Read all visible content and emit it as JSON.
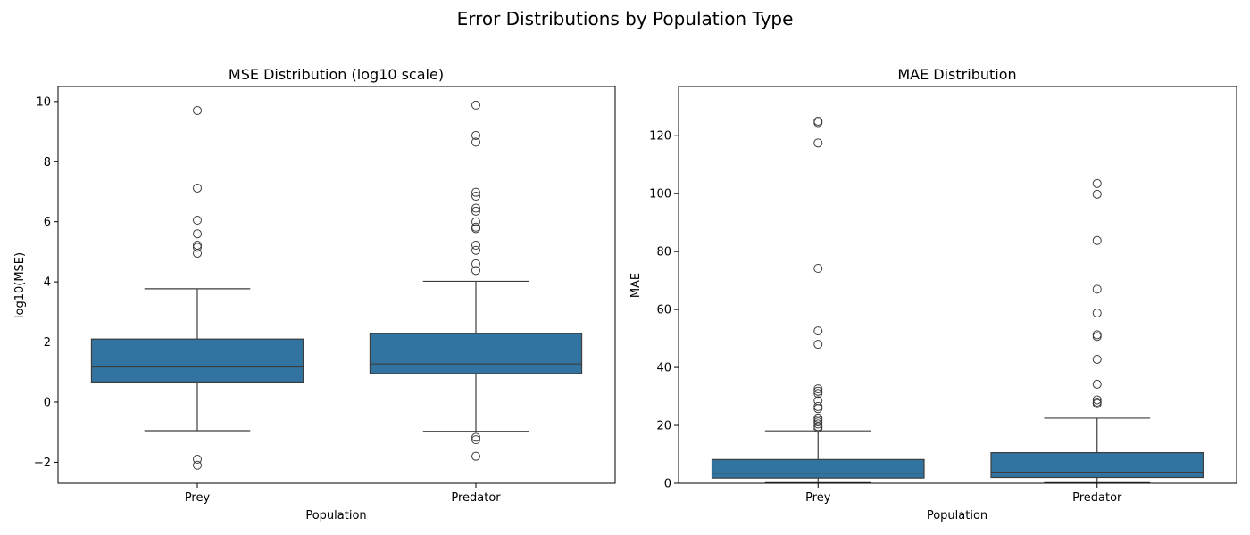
{
  "figure": {
    "suptitle": "Error Distributions by Population Type"
  },
  "colors": {
    "box_fill": "#3274a1",
    "line": "#3d3d3d",
    "axes": "#000000",
    "background": "#ffffff"
  },
  "chart_data": [
    {
      "type": "box",
      "title": "MSE Distribution (log10 scale)",
      "xlabel": "Population",
      "ylabel": "log10(MSE)",
      "categories": [
        "Prey",
        "Predator"
      ],
      "ylim": [
        -2.7,
        10.5
      ],
      "yticks": [
        -2,
        0,
        2,
        4,
        6,
        8,
        10
      ],
      "ytick_labels": [
        "−2",
        "0",
        "2",
        "4",
        "6",
        "8",
        "10"
      ],
      "grid": false,
      "boxes": [
        {
          "whisker_low": -0.95,
          "q1": 0.67,
          "median": 1.17,
          "q3": 2.1,
          "whisker_high": 3.77,
          "outliers": [
            9.7,
            7.12,
            6.05,
            5.6,
            5.22,
            5.15,
            4.95,
            -1.9,
            -2.1
          ]
        },
        {
          "whisker_low": -0.97,
          "q1": 0.95,
          "median": 1.27,
          "q3": 2.28,
          "whisker_high": 4.02,
          "outliers": [
            9.88,
            8.87,
            8.65,
            6.98,
            6.85,
            6.45,
            6.35,
            6.0,
            5.82,
            5.77,
            5.22,
            5.05,
            4.6,
            4.38,
            -1.17,
            -1.25,
            -1.8
          ]
        }
      ]
    },
    {
      "type": "box",
      "title": "MAE Distribution",
      "xlabel": "Population",
      "ylabel": "MAE",
      "categories": [
        "Prey",
        "Predator"
      ],
      "ylim": [
        0,
        137
      ],
      "yticks": [
        0,
        20,
        40,
        60,
        80,
        100,
        120
      ],
      "ytick_labels": [
        "0",
        "20",
        "40",
        "60",
        "80",
        "100",
        "120"
      ],
      "grid": false,
      "boxes": [
        {
          "whisker_low": 0.2,
          "q1": 1.8,
          "median": 3.5,
          "q3": 8.2,
          "whisker_high": 18.1,
          "outliers": [
            125,
            124.5,
            117.5,
            74.2,
            52.6,
            48,
            32.6,
            31.8,
            31,
            28.5,
            26.5,
            25.8,
            22.5,
            21.8,
            21.2,
            20.5,
            19.6,
            19
          ]
        },
        {
          "whisker_low": 0.2,
          "q1": 2,
          "median": 3.8,
          "q3": 10.6,
          "whisker_high": 22.5,
          "outliers": [
            103.5,
            99.8,
            83.8,
            67,
            58.8,
            51.3,
            50.7,
            42.8,
            34.2,
            28.8,
            28,
            27.5
          ]
        }
      ]
    }
  ]
}
